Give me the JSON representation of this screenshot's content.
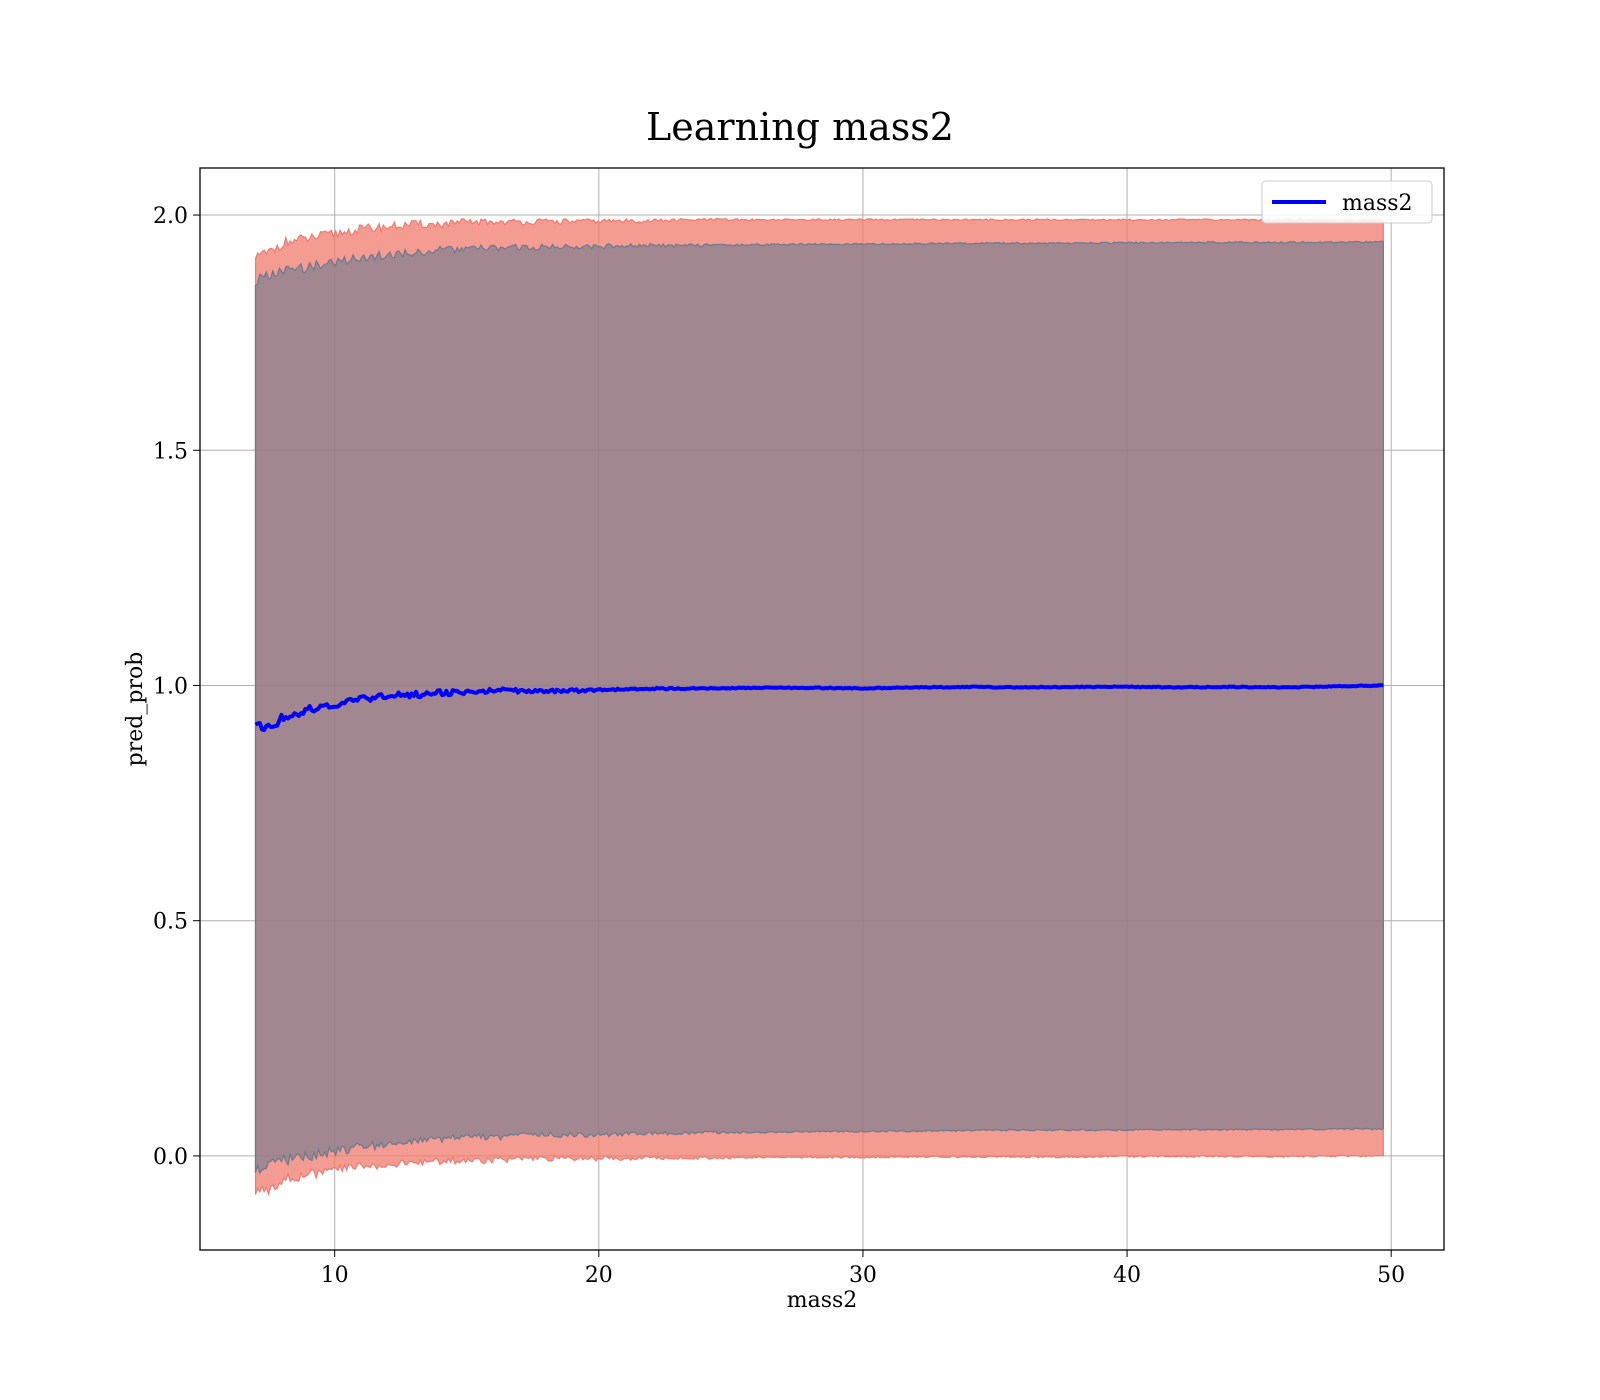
{
  "chart_data": {
    "type": "line",
    "title": "Learning mass2",
    "xlabel": "mass2",
    "ylabel": "pred_prob",
    "xlim": [
      4.9,
      52.0
    ],
    "ylim": [
      -0.2,
      2.1
    ],
    "xticks": [
      10,
      20,
      30,
      40,
      50
    ],
    "xtick_labels": [
      "10",
      "20",
      "30",
      "40",
      "50"
    ],
    "yticks": [
      0.0,
      0.5,
      1.0,
      1.5,
      2.0
    ],
    "ytick_labels": [
      "0.0",
      "0.5",
      "1.0",
      "1.5",
      "2.0"
    ],
    "grid": true,
    "legend": {
      "position": "top-right",
      "entries": [
        "mass2"
      ]
    },
    "series": [
      {
        "name": "mass2",
        "color": "#0000ff",
        "x": [
          7.0,
          7.5,
          8.0,
          9.0,
          10.0,
          11.0,
          12.0,
          13.0,
          14.0,
          15.0,
          16.0,
          18.0,
          20.0,
          22.0,
          24.0,
          26.0,
          28.0,
          30.0,
          32.0,
          34.0,
          36.0,
          38.0,
          40.0,
          42.0,
          44.0,
          46.0,
          48.0,
          49.7
        ],
        "y": [
          0.92,
          0.91,
          0.93,
          0.95,
          0.96,
          0.97,
          0.98,
          0.98,
          0.985,
          0.985,
          0.99,
          0.988,
          0.99,
          0.993,
          0.994,
          0.995,
          0.995,
          0.994,
          0.996,
          0.997,
          0.996,
          0.997,
          0.997,
          0.996,
          0.997,
          0.996,
          0.998,
          1.0
        ]
      }
    ],
    "bands": [
      {
        "color": "#f07a6e",
        "x": [
          7.0,
          7.5,
          8.0,
          9.0,
          10.0,
          11.0,
          12.0,
          13.0,
          14.0,
          15.0,
          16.0,
          18.0,
          20.0,
          22.0,
          24.0,
          26.0,
          28.0,
          30.0,
          32.0,
          34.0,
          36.0,
          38.0,
          40.0,
          42.0,
          44.0,
          46.0,
          48.0,
          49.7
        ],
        "lower": [
          -0.08,
          -0.07,
          -0.05,
          -0.04,
          -0.03,
          -0.02,
          -0.02,
          -0.015,
          -0.01,
          -0.01,
          -0.008,
          -0.006,
          -0.005,
          -0.004,
          -0.004,
          -0.003,
          -0.003,
          -0.003,
          -0.002,
          -0.002,
          -0.002,
          -0.002,
          -0.001,
          -0.001,
          -0.001,
          -0.001,
          0.0,
          0.0
        ],
        "upper": [
          1.91,
          1.92,
          1.94,
          1.95,
          1.96,
          1.97,
          1.975,
          1.98,
          1.98,
          1.985,
          1.985,
          1.986,
          1.987,
          1.988,
          1.99,
          1.99,
          1.99,
          1.99,
          1.99,
          1.99,
          1.99,
          1.99,
          1.99,
          1.99,
          1.99,
          1.99,
          1.99,
          1.99
        ]
      },
      {
        "color": "#6b7a8f",
        "x": [
          7.0,
          7.5,
          8.0,
          9.0,
          10.0,
          11.0,
          12.0,
          13.0,
          14.0,
          15.0,
          16.0,
          18.0,
          20.0,
          22.0,
          24.0,
          26.0,
          28.0,
          30.0,
          32.0,
          34.0,
          36.0,
          38.0,
          40.0,
          42.0,
          44.0,
          46.0,
          48.0,
          49.7
        ],
        "lower": [
          -0.03,
          -0.02,
          -0.01,
          0.0,
          0.01,
          0.02,
          0.025,
          0.03,
          0.035,
          0.04,
          0.04,
          0.045,
          0.045,
          0.048,
          0.05,
          0.05,
          0.052,
          0.052,
          0.053,
          0.054,
          0.055,
          0.055,
          0.055,
          0.056,
          0.056,
          0.056,
          0.057,
          0.057
        ],
        "upper": [
          1.86,
          1.87,
          1.88,
          1.89,
          1.9,
          1.91,
          1.915,
          1.92,
          1.925,
          1.928,
          1.93,
          1.932,
          1.934,
          1.935,
          1.936,
          1.937,
          1.938,
          1.938,
          1.939,
          1.94,
          1.94,
          1.94,
          1.941,
          1.941,
          1.942,
          1.942,
          1.942,
          1.943
        ]
      }
    ]
  }
}
